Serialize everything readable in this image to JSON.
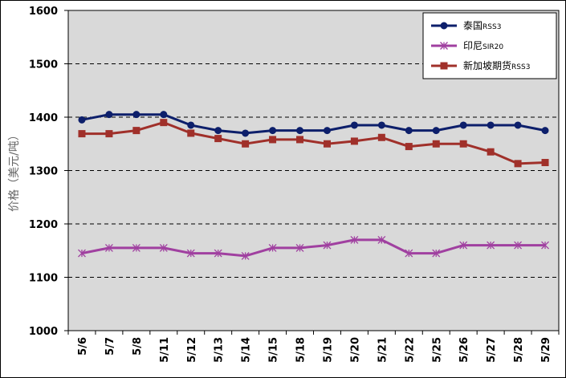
{
  "chart_data": {
    "type": "line",
    "title": "",
    "xlabel": "",
    "ylabel": "价格（美元/吨）",
    "ylim": [
      1000,
      1600
    ],
    "yticks": [
      1000,
      1100,
      1200,
      1300,
      1400,
      1500,
      1600
    ],
    "grid": "dashed horizontal",
    "legend_position": "top-right",
    "categories": [
      "5/6",
      "5/7",
      "5/8",
      "5/11",
      "5/12",
      "5/13",
      "5/14",
      "5/15",
      "5/18",
      "5/19",
      "5/20",
      "5/21",
      "5/22",
      "5/25",
      "5/26",
      "5/27",
      "5/28",
      "5/29"
    ],
    "series": [
      {
        "name_main": "泰国",
        "name_sub": "RSS3",
        "color": "#0d1f6b",
        "marker": "circle",
        "values": [
          1395,
          1405,
          1405,
          1405,
          1385,
          1375,
          1370,
          1375,
          1375,
          1375,
          1385,
          1385,
          1375,
          1375,
          1385,
          1385,
          1385,
          1375
        ]
      },
      {
        "name_main": "印尼",
        "name_sub": "SIR20",
        "color": "#a040a0",
        "marker": "asterisk",
        "values": [
          1145,
          1155,
          1155,
          1155,
          1145,
          1145,
          1140,
          1155,
          1155,
          1160,
          1170,
          1170,
          1145,
          1145,
          1160,
          1160,
          1160,
          1160
        ]
      },
      {
        "name_main": "新加坡期货",
        "name_sub": "RSS3",
        "color": "#a0302a",
        "marker": "square",
        "values": [
          1369,
          1369,
          1375,
          1390,
          1370,
          1360,
          1350,
          1358,
          1358,
          1350,
          1355,
          1362,
          1345,
          1350,
          1350,
          1335,
          1313,
          1315
        ]
      }
    ]
  },
  "colors": {
    "plot_background": "#d9d9d9",
    "page_background": "#ffffff",
    "gridline": "#000000"
  }
}
